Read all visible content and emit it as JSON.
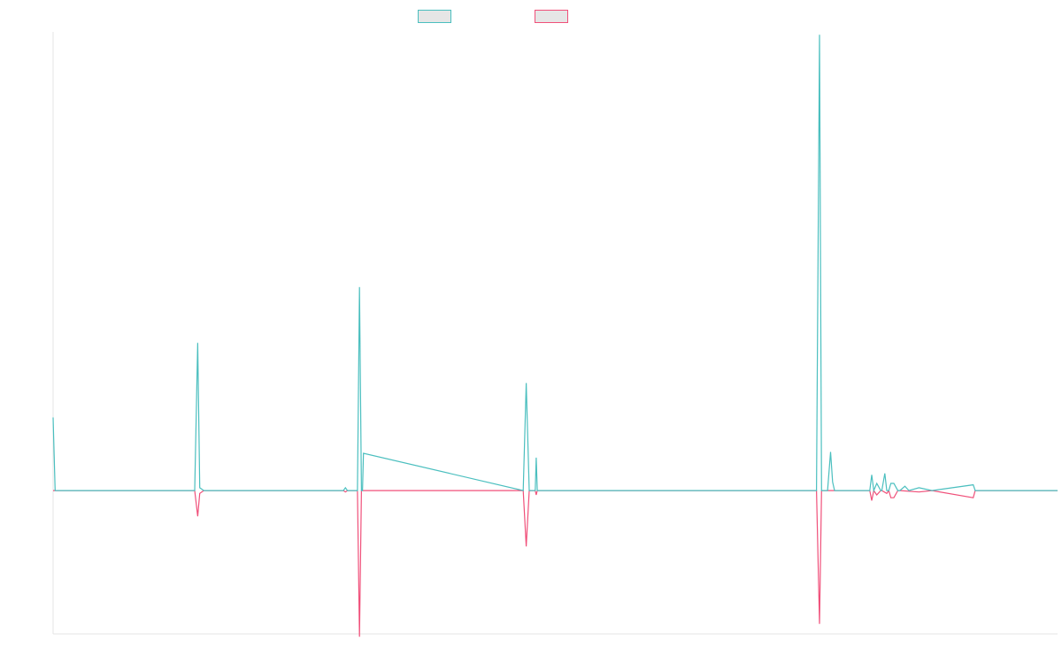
{
  "colors": {
    "positive": "#4bbfbf",
    "negative": "#f0507a",
    "axis": "#e5e5e5",
    "legend_fill": "#e6e6e6"
  },
  "legend": [
    {
      "label": "",
      "color": "#4bbfbf"
    },
    {
      "label": "",
      "color": "#f0507a"
    }
  ],
  "chart_data": {
    "type": "line",
    "title": "",
    "xlabel": "",
    "ylabel": "",
    "grid": false,
    "legend_position": "top-center",
    "xlim": [
      0,
      1000
    ],
    "ylim": [
      -100,
      320
    ],
    "series": [
      {
        "x": [
          0,
          2,
          141,
          144,
          146,
          150,
          289,
          291,
          293,
          303,
          305,
          307,
          308,
          309,
          468,
          471,
          474,
          480,
          481,
          482,
          760,
          763,
          765,
          771,
          774,
          776,
          778,
          813,
          815,
          817,
          820,
          824,
          825,
          828,
          830,
          832,
          834,
          837,
          841,
          843,
          848,
          852,
          862,
          875,
          916,
          918,
          944,
          1000
        ],
        "y": [
          51,
          0,
          0,
          103,
          2,
          0,
          0,
          2,
          0,
          0,
          142,
          0,
          0,
          26,
          0,
          75,
          0,
          0,
          23,
          0,
          0,
          318,
          0,
          0,
          27,
          6,
          0,
          0,
          11,
          0,
          5,
          0,
          0,
          12,
          0,
          0,
          5,
          5,
          0,
          0,
          3,
          0,
          2,
          0,
          4,
          0,
          0,
          0
        ]
      },
      {
        "x": [
          0,
          141,
          144,
          146,
          150,
          289,
          291,
          293,
          303,
          305,
          307,
          468,
          471,
          474,
          480,
          481,
          482,
          760,
          763,
          765,
          813,
          815,
          817,
          820,
          824,
          825,
          830,
          832,
          834,
          837,
          841,
          843,
          862,
          875,
          916,
          918,
          944,
          1000
        ],
        "y": [
          0,
          0,
          -18,
          -2,
          0,
          0,
          -1,
          0,
          0,
          -102,
          0,
          0,
          -39,
          0,
          0,
          -3,
          0,
          0,
          -93,
          0,
          0,
          -7,
          0,
          -3,
          0,
          0,
          -2,
          0,
          -5,
          -5,
          0,
          0,
          -1,
          0,
          -5,
          0,
          0,
          0
        ]
      }
    ]
  }
}
